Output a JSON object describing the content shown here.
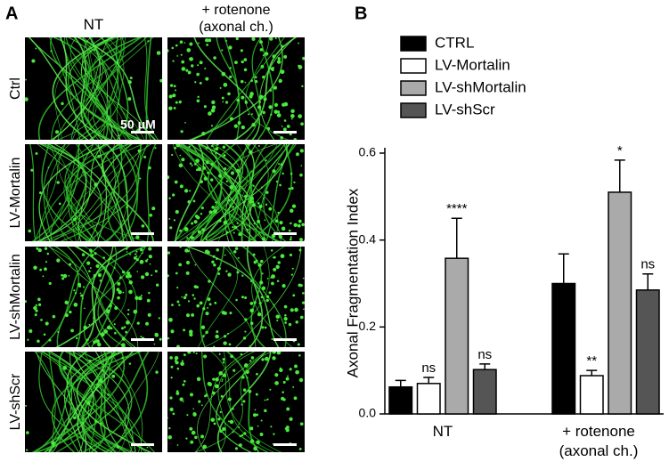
{
  "panel_a": {
    "panel_label": "A",
    "columns": [
      "NT",
      "+ rotenone (axonal ch.)"
    ],
    "rows": [
      "Ctrl",
      "LV-Mortalin",
      "LV-shMortalin",
      "LV-shScr"
    ],
    "scale_bar_label": "50 μM"
  },
  "chart_data": {
    "type": "bar",
    "panel_label": "B",
    "ylabel": "Axonal Fragmentation Index",
    "categories": [
      "NT",
      "+ rotenone (axonal ch.)"
    ],
    "series": [
      {
        "name": "CTRL",
        "color": "#000000",
        "values": [
          0.062,
          0.3
        ],
        "errors": [
          0.015,
          0.068
        ],
        "annotations": [
          null,
          null
        ]
      },
      {
        "name": "LV-Mortalin",
        "color": "#ffffff",
        "values": [
          0.07,
          0.088
        ],
        "errors": [
          0.014,
          0.012
        ],
        "annotations": [
          "ns",
          "**"
        ]
      },
      {
        "name": "LV-shMortalin",
        "color": "#aaaaaa",
        "values": [
          0.358,
          0.51
        ],
        "errors": [
          0.092,
          0.074
        ],
        "annotations": [
          "****",
          "*"
        ]
      },
      {
        "name": "LV-shScr",
        "color": "#555555",
        "values": [
          0.102,
          0.285
        ],
        "errors": [
          0.013,
          0.037
        ],
        "annotations": [
          "ns",
          "ns"
        ]
      }
    ],
    "ylim": [
      0,
      0.6
    ],
    "yticks": [
      {
        "value": 0,
        "label": "0.0"
      },
      0.2,
      0.4,
      0.6
    ],
    "legend": "top-left"
  }
}
